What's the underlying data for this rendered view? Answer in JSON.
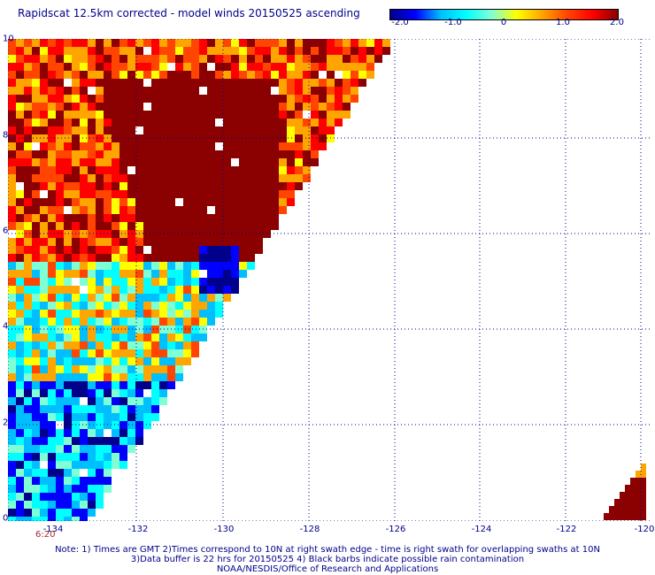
{
  "title": "Rapidscat 12.5km corrected - model winds 20150525 ascending",
  "colorbar": {
    "ticks": [
      "-2.0",
      "-1.0",
      "0",
      "1.0",
      "2.0"
    ],
    "colors": [
      "#00008b",
      "#0000ff",
      "#00bfff",
      "#00ffff",
      "#7fffd4",
      "#ffff00",
      "#ffa500",
      "#ff4500",
      "#ff0000",
      "#8b0000"
    ]
  },
  "axes": {
    "x_ticks": [
      "-134",
      "-132",
      "-130",
      "-128",
      "-126",
      "-124",
      "-122",
      "-120"
    ],
    "y_ticks": [
      "0",
      "2",
      "4",
      "6",
      "8",
      "10"
    ]
  },
  "swath_time": "6:20",
  "notes": {
    "line1": "Note: 1) Times are GMT 2)Times correspond to 10N at right swath edge - time is right swath for overlapping swaths at 10N",
    "line2": "3)Data buffer is 22 hrs for 20150525 4) Black barbs indicate possible rain contamination",
    "line3": "NOAA/NESDIS/Office of Research and Applications"
  }
}
